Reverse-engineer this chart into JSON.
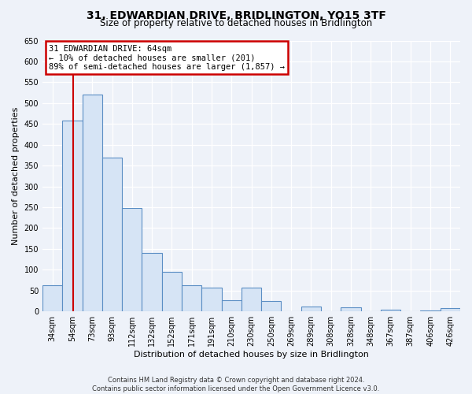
{
  "title": "31, EDWARDIAN DRIVE, BRIDLINGTON, YO15 3TF",
  "subtitle": "Size of property relative to detached houses in Bridlington",
  "xlabel": "Distribution of detached houses by size in Bridlington",
  "ylabel": "Number of detached properties",
  "categories": [
    "34sqm",
    "54sqm",
    "73sqm",
    "93sqm",
    "112sqm",
    "132sqm",
    "152sqm",
    "171sqm",
    "191sqm",
    "210sqm",
    "230sqm",
    "250sqm",
    "269sqm",
    "289sqm",
    "308sqm",
    "328sqm",
    "348sqm",
    "367sqm",
    "387sqm",
    "406sqm",
    "426sqm"
  ],
  "values": [
    63,
    458,
    520,
    370,
    248,
    140,
    95,
    62,
    57,
    27,
    57,
    25,
    0,
    12,
    0,
    10,
    0,
    5,
    0,
    3,
    8
  ],
  "bar_color": "#d6e4f5",
  "bar_edge_color": "#5b8ec4",
  "property_line_color": "#cc0000",
  "annotation_line1": "31 EDWARDIAN DRIVE: 64sqm",
  "annotation_line2": "← 10% of detached houses are smaller (201)",
  "annotation_line3": "89% of semi-detached houses are larger (1,857) →",
  "annotation_box_color": "#ffffff",
  "annotation_box_edge_color": "#cc0000",
  "ylim": [
    0,
    650
  ],
  "yticks": [
    0,
    50,
    100,
    150,
    200,
    250,
    300,
    350,
    400,
    450,
    500,
    550,
    600,
    650
  ],
  "footer_line1": "Contains HM Land Registry data © Crown copyright and database right 2024.",
  "footer_line2": "Contains public sector information licensed under the Open Government Licence v3.0.",
  "bg_color": "#eef2f9",
  "grid_color": "#ffffff",
  "title_fontsize": 10,
  "subtitle_fontsize": 8.5,
  "tick_fontsize": 7,
  "ylabel_fontsize": 8,
  "xlabel_fontsize": 8,
  "footer_fontsize": 6
}
